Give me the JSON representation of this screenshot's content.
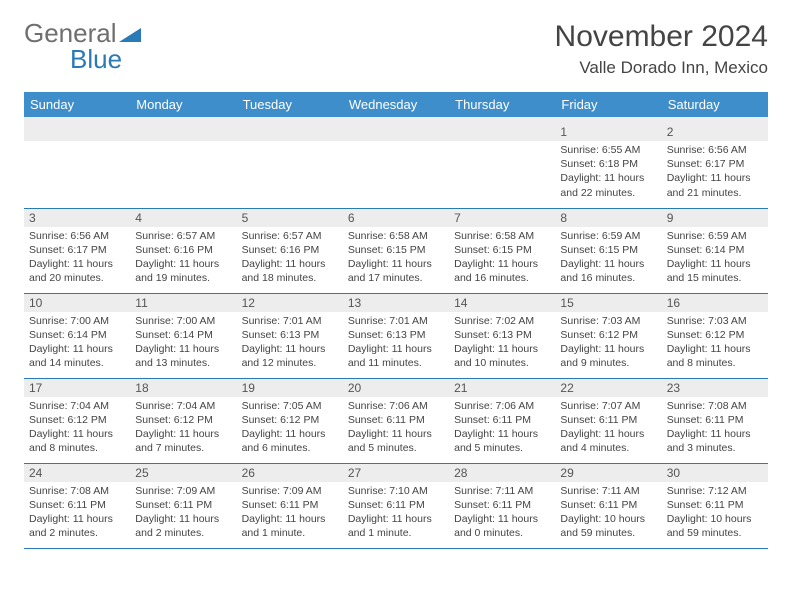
{
  "logo": {
    "word1": "General",
    "word2": "Blue"
  },
  "title": "November 2024",
  "location": "Valle Dorado Inn, Mexico",
  "colors": {
    "header_bg": "#3f8ecc",
    "header_text": "#ffffff",
    "daynum_bg": "#ededed",
    "border": "#2a7ab8",
    "body_text": "#444444",
    "logo_gray": "#6f6f6f",
    "logo_blue": "#2a7ab8",
    "page_bg": "#ffffff"
  },
  "weekdays": [
    "Sunday",
    "Monday",
    "Tuesday",
    "Wednesday",
    "Thursday",
    "Friday",
    "Saturday"
  ],
  "weeks": [
    [
      null,
      null,
      null,
      null,
      null,
      {
        "n": "1",
        "sr": "Sunrise: 6:55 AM",
        "ss": "Sunset: 6:18 PM",
        "d1": "Daylight: 11 hours",
        "d2": "and 22 minutes."
      },
      {
        "n": "2",
        "sr": "Sunrise: 6:56 AM",
        "ss": "Sunset: 6:17 PM",
        "d1": "Daylight: 11 hours",
        "d2": "and 21 minutes."
      }
    ],
    [
      {
        "n": "3",
        "sr": "Sunrise: 6:56 AM",
        "ss": "Sunset: 6:17 PM",
        "d1": "Daylight: 11 hours",
        "d2": "and 20 minutes."
      },
      {
        "n": "4",
        "sr": "Sunrise: 6:57 AM",
        "ss": "Sunset: 6:16 PM",
        "d1": "Daylight: 11 hours",
        "d2": "and 19 minutes."
      },
      {
        "n": "5",
        "sr": "Sunrise: 6:57 AM",
        "ss": "Sunset: 6:16 PM",
        "d1": "Daylight: 11 hours",
        "d2": "and 18 minutes."
      },
      {
        "n": "6",
        "sr": "Sunrise: 6:58 AM",
        "ss": "Sunset: 6:15 PM",
        "d1": "Daylight: 11 hours",
        "d2": "and 17 minutes."
      },
      {
        "n": "7",
        "sr": "Sunrise: 6:58 AM",
        "ss": "Sunset: 6:15 PM",
        "d1": "Daylight: 11 hours",
        "d2": "and 16 minutes."
      },
      {
        "n": "8",
        "sr": "Sunrise: 6:59 AM",
        "ss": "Sunset: 6:15 PM",
        "d1": "Daylight: 11 hours",
        "d2": "and 16 minutes."
      },
      {
        "n": "9",
        "sr": "Sunrise: 6:59 AM",
        "ss": "Sunset: 6:14 PM",
        "d1": "Daylight: 11 hours",
        "d2": "and 15 minutes."
      }
    ],
    [
      {
        "n": "10",
        "sr": "Sunrise: 7:00 AM",
        "ss": "Sunset: 6:14 PM",
        "d1": "Daylight: 11 hours",
        "d2": "and 14 minutes."
      },
      {
        "n": "11",
        "sr": "Sunrise: 7:00 AM",
        "ss": "Sunset: 6:14 PM",
        "d1": "Daylight: 11 hours",
        "d2": "and 13 minutes."
      },
      {
        "n": "12",
        "sr": "Sunrise: 7:01 AM",
        "ss": "Sunset: 6:13 PM",
        "d1": "Daylight: 11 hours",
        "d2": "and 12 minutes."
      },
      {
        "n": "13",
        "sr": "Sunrise: 7:01 AM",
        "ss": "Sunset: 6:13 PM",
        "d1": "Daylight: 11 hours",
        "d2": "and 11 minutes."
      },
      {
        "n": "14",
        "sr": "Sunrise: 7:02 AM",
        "ss": "Sunset: 6:13 PM",
        "d1": "Daylight: 11 hours",
        "d2": "and 10 minutes."
      },
      {
        "n": "15",
        "sr": "Sunrise: 7:03 AM",
        "ss": "Sunset: 6:12 PM",
        "d1": "Daylight: 11 hours",
        "d2": "and 9 minutes."
      },
      {
        "n": "16",
        "sr": "Sunrise: 7:03 AM",
        "ss": "Sunset: 6:12 PM",
        "d1": "Daylight: 11 hours",
        "d2": "and 8 minutes."
      }
    ],
    [
      {
        "n": "17",
        "sr": "Sunrise: 7:04 AM",
        "ss": "Sunset: 6:12 PM",
        "d1": "Daylight: 11 hours",
        "d2": "and 8 minutes."
      },
      {
        "n": "18",
        "sr": "Sunrise: 7:04 AM",
        "ss": "Sunset: 6:12 PM",
        "d1": "Daylight: 11 hours",
        "d2": "and 7 minutes."
      },
      {
        "n": "19",
        "sr": "Sunrise: 7:05 AM",
        "ss": "Sunset: 6:12 PM",
        "d1": "Daylight: 11 hours",
        "d2": "and 6 minutes."
      },
      {
        "n": "20",
        "sr": "Sunrise: 7:06 AM",
        "ss": "Sunset: 6:11 PM",
        "d1": "Daylight: 11 hours",
        "d2": "and 5 minutes."
      },
      {
        "n": "21",
        "sr": "Sunrise: 7:06 AM",
        "ss": "Sunset: 6:11 PM",
        "d1": "Daylight: 11 hours",
        "d2": "and 5 minutes."
      },
      {
        "n": "22",
        "sr": "Sunrise: 7:07 AM",
        "ss": "Sunset: 6:11 PM",
        "d1": "Daylight: 11 hours",
        "d2": "and 4 minutes."
      },
      {
        "n": "23",
        "sr": "Sunrise: 7:08 AM",
        "ss": "Sunset: 6:11 PM",
        "d1": "Daylight: 11 hours",
        "d2": "and 3 minutes."
      }
    ],
    [
      {
        "n": "24",
        "sr": "Sunrise: 7:08 AM",
        "ss": "Sunset: 6:11 PM",
        "d1": "Daylight: 11 hours",
        "d2": "and 2 minutes."
      },
      {
        "n": "25",
        "sr": "Sunrise: 7:09 AM",
        "ss": "Sunset: 6:11 PM",
        "d1": "Daylight: 11 hours",
        "d2": "and 2 minutes."
      },
      {
        "n": "26",
        "sr": "Sunrise: 7:09 AM",
        "ss": "Sunset: 6:11 PM",
        "d1": "Daylight: 11 hours",
        "d2": "and 1 minute."
      },
      {
        "n": "27",
        "sr": "Sunrise: 7:10 AM",
        "ss": "Sunset: 6:11 PM",
        "d1": "Daylight: 11 hours",
        "d2": "and 1 minute."
      },
      {
        "n": "28",
        "sr": "Sunrise: 7:11 AM",
        "ss": "Sunset: 6:11 PM",
        "d1": "Daylight: 11 hours",
        "d2": "and 0 minutes."
      },
      {
        "n": "29",
        "sr": "Sunrise: 7:11 AM",
        "ss": "Sunset: 6:11 PM",
        "d1": "Daylight: 10 hours",
        "d2": "and 59 minutes."
      },
      {
        "n": "30",
        "sr": "Sunrise: 7:12 AM",
        "ss": "Sunset: 6:11 PM",
        "d1": "Daylight: 10 hours",
        "d2": "and 59 minutes."
      }
    ]
  ]
}
